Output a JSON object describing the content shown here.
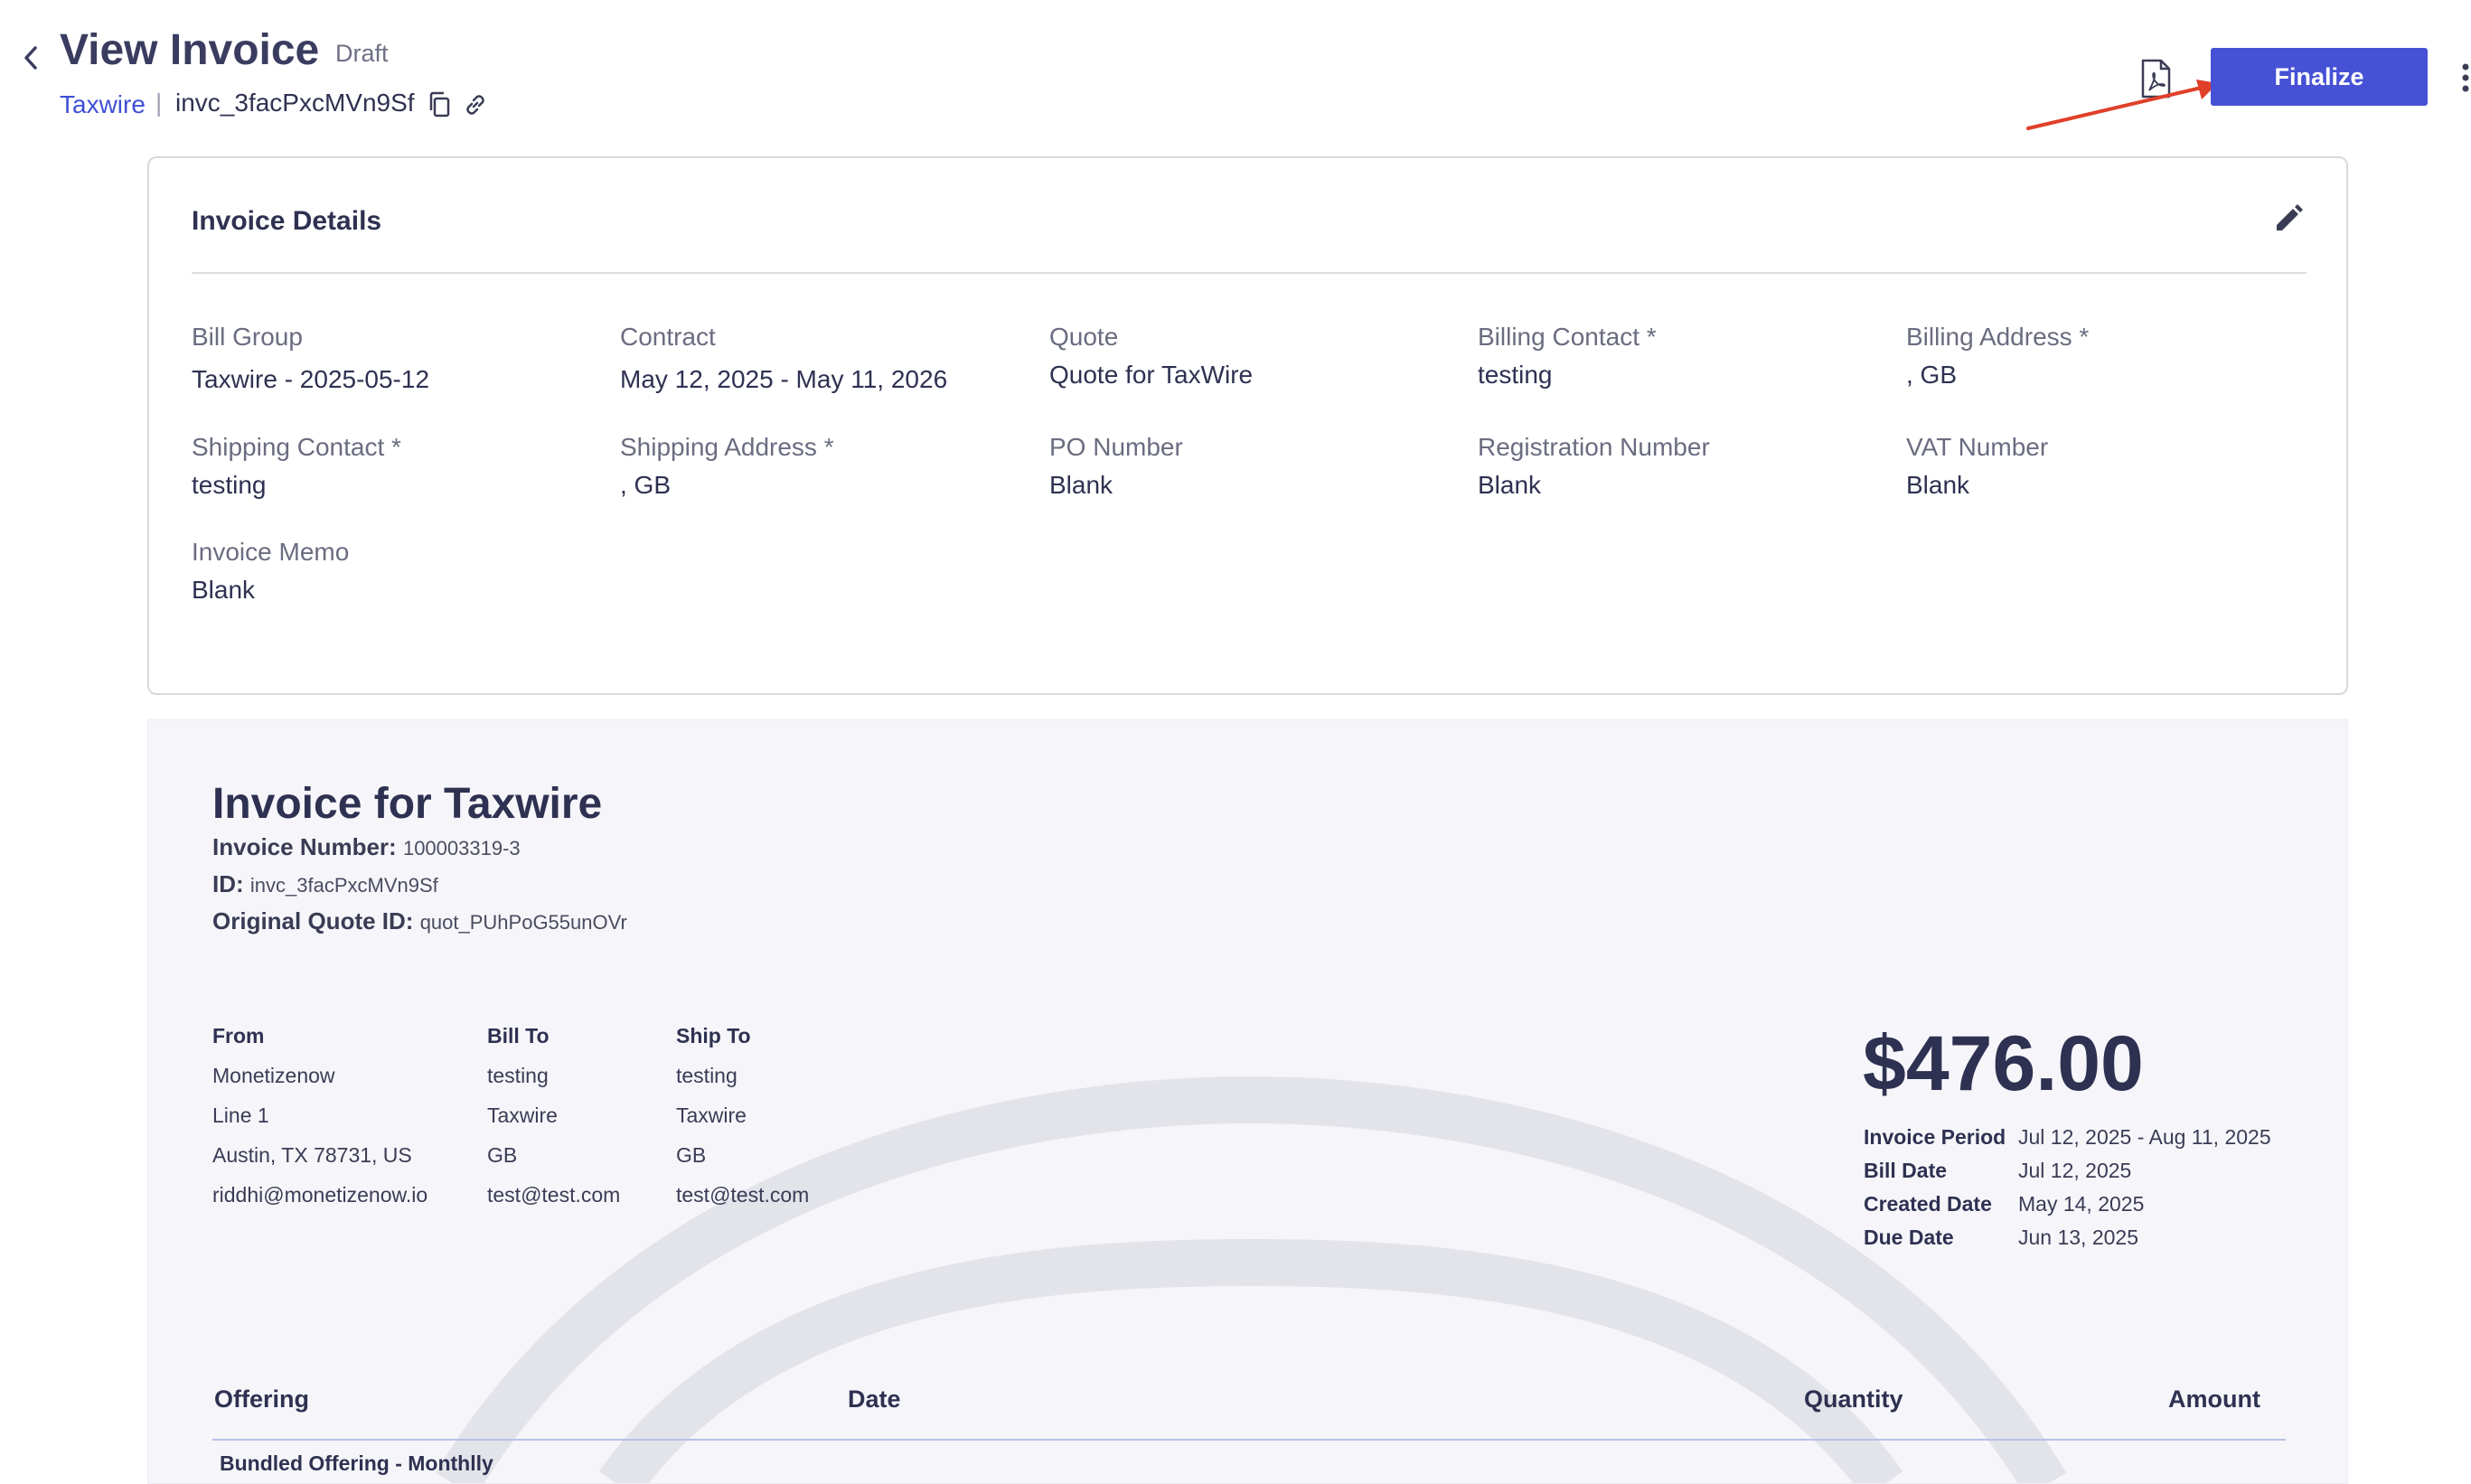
{
  "header": {
    "title": "View Invoice",
    "status": "Draft",
    "breadcrumb_link": "Taxwire",
    "breadcrumb_sep": "|",
    "invoice_id": "invc_3facPxcMVn9Sf",
    "finalize_label": "Finalize"
  },
  "details": {
    "title": "Invoice Details",
    "fields": [
      {
        "label": "Bill Group",
        "value": "Taxwire - 2025-05-12"
      },
      {
        "label": "Contract",
        "value": "May 12, 2025 - May 11, 2026"
      },
      {
        "label": "Quote",
        "value": "Quote for TaxWire"
      },
      {
        "label": "Billing Contact *",
        "value": "testing"
      },
      {
        "label": "Billing Address *",
        "value": ", GB"
      },
      {
        "label": "Shipping Contact *",
        "value": "testing"
      },
      {
        "label": "Shipping Address *",
        "value": ", GB"
      },
      {
        "label": "PO Number",
        "value": "Blank"
      },
      {
        "label": "Registration Number",
        "value": "Blank"
      },
      {
        "label": "VAT Number",
        "value": "Blank"
      },
      {
        "label": "Invoice Memo",
        "value": "Blank"
      }
    ]
  },
  "preview": {
    "title": "Invoice for Taxwire",
    "meta": [
      {
        "label": "Invoice Number:",
        "value": "100003319-3"
      },
      {
        "label": "ID:",
        "value": "invc_3facPxcMVn9Sf"
      },
      {
        "label": "Original Quote ID:",
        "value": "quot_PUhPoG55unOVr"
      }
    ],
    "from": {
      "heading": "From",
      "lines": [
        "Monetizenow",
        "Line 1",
        "Austin, TX 78731, US",
        "riddhi@monetizenow.io"
      ]
    },
    "bill_to": {
      "heading": "Bill To",
      "lines": [
        "testing",
        "Taxwire",
        "GB",
        "test@test.com"
      ]
    },
    "ship_to": {
      "heading": "Ship To",
      "lines": [
        "testing",
        "Taxwire",
        "GB",
        "test@test.com"
      ]
    },
    "amount": "$476.00",
    "dates": [
      {
        "label": "Invoice Period",
        "value": "Jul 12, 2025 - Aug 11, 2025"
      },
      {
        "label": "Bill Date",
        "value": "Jul 12, 2025"
      },
      {
        "label": "Created Date",
        "value": "May 14, 2025"
      },
      {
        "label": "Due Date",
        "value": "Jun 13, 2025"
      }
    ],
    "table": {
      "headers": {
        "offering": "Offering",
        "date": "Date",
        "quantity": "Quantity",
        "amount": "Amount"
      },
      "first_row": "Bundled Offering - Monthlly"
    }
  },
  "colors": {
    "accent": "#4651d6",
    "link": "#3f4fd6",
    "annotation_arrow": "#e0402a"
  },
  "icons": [
    "chevron-left-icon",
    "copy-icon",
    "link-icon",
    "pdf-icon",
    "kebab-icon",
    "edit-pencil-icon"
  ]
}
